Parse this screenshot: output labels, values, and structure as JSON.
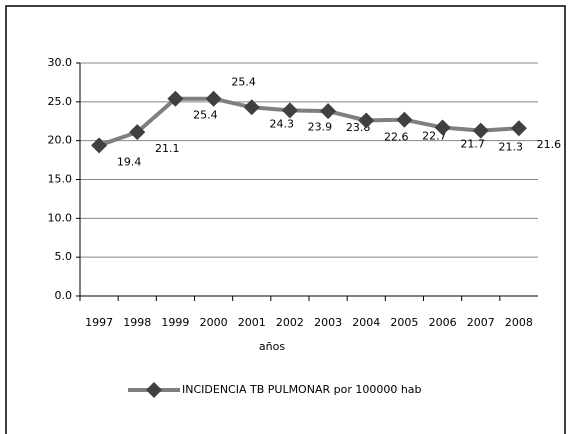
{
  "chart_data": {
    "type": "line",
    "categories": [
      "1997",
      "1998",
      "1999",
      "2000",
      "2001",
      "2002",
      "2003",
      "2004",
      "2005",
      "2006",
      "2007",
      "2008"
    ],
    "series": [
      {
        "name": "INCIDENCIA TB PULMONAR por 100000 hab",
        "color": "#7f7f7f",
        "marker_color": "#404040",
        "values": [
          19.4,
          21.1,
          25.4,
          25.4,
          24.3,
          23.9,
          23.8,
          22.6,
          22.7,
          21.7,
          21.3,
          21.6
        ]
      }
    ],
    "x_label": "años",
    "ylim": [
      0,
      30
    ],
    "yticks": [
      {
        "value": 0,
        "label": "0.0"
      },
      {
        "value": 5,
        "label": "5.0"
      },
      {
        "value": 10,
        "label": "10.0"
      },
      {
        "value": 15,
        "label": "15.0"
      },
      {
        "value": 20,
        "label": "20.0"
      },
      {
        "value": 25,
        "label": "25.0"
      },
      {
        "value": 30,
        "label": "30.0"
      }
    ],
    "grid": true,
    "legend": "bottom"
  }
}
